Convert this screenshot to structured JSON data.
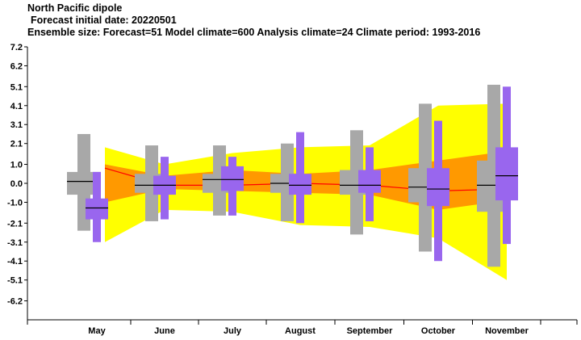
{
  "chart_data": {
    "type": "box",
    "title": "North Pacific dipole",
    "subtitle": " Forecast initial date: 20220501",
    "subtitle2": "Ensemble size: Forecast=51 Model climate=600 Analysis climate=24   Climate period: 1993-2016",
    "categories": [
      "May",
      "June",
      "July",
      "August",
      "September",
      "October",
      "November"
    ],
    "yticks": [
      "7.2",
      "6.2",
      "5.1",
      "4.1",
      "3.1",
      "2.1",
      "1.0",
      "0.0",
      "-1.0",
      "-2.1",
      "-3.1",
      "-4.1",
      "-5.1",
      "-6.2"
    ],
    "ylim": [
      -7.2,
      7.2
    ],
    "colors": {
      "outer_band": "#ffff00",
      "inner_band": "#ff9900",
      "climate_median": "#ff0000",
      "climate_box": "#a8a8a8",
      "forecast_box": "#9966ee",
      "median_line": "#000000"
    },
    "climate_bands": {
      "min": [
        -3.1,
        -1.4,
        -1.5,
        -2.2,
        -2.3,
        -2.9,
        -5.1
      ],
      "q25": [
        -1.0,
        -0.3,
        -0.4,
        -0.5,
        -0.6,
        -1.4,
        -0.9
      ],
      "median": [
        0.8,
        -0.1,
        -0.1,
        0.0,
        -0.1,
        -0.4,
        -0.3
      ],
      "q75": [
        1.0,
        0.4,
        0.7,
        0.5,
        0.7,
        1.2,
        1.7
      ],
      "max": [
        1.9,
        1.0,
        1.6,
        1.9,
        2.0,
        4.1,
        4.2
      ]
    },
    "climate_boxes": [
      {
        "min": -2.5,
        "q25": -0.6,
        "median": 0.1,
        "q75": 0.6,
        "max": 2.6
      },
      {
        "min": -2.0,
        "q25": -0.5,
        "median": -0.1,
        "q75": 0.5,
        "max": 2.0
      },
      {
        "min": -1.7,
        "q25": -0.5,
        "median": 0.2,
        "q75": 0.5,
        "max": 2.0
      },
      {
        "min": -2.0,
        "q25": -0.5,
        "median": 0.0,
        "q75": 0.5,
        "max": 2.1
      },
      {
        "min": -2.7,
        "q25": -0.6,
        "median": -0.1,
        "q75": 0.7,
        "max": 2.8
      },
      {
        "min": -3.6,
        "q25": -1.0,
        "median": -0.2,
        "q75": 0.8,
        "max": 4.2
      },
      {
        "min": -4.4,
        "q25": -1.5,
        "median": -0.1,
        "q75": 1.2,
        "max": 5.2
      }
    ],
    "forecast_boxes": [
      {
        "min": -3.1,
        "q25": -1.9,
        "median": -1.3,
        "q75": -0.8,
        "max": 0.6
      },
      {
        "min": -1.9,
        "q25": -0.6,
        "median": -0.1,
        "q75": 0.4,
        "max": 1.4
      },
      {
        "min": -1.7,
        "q25": -0.4,
        "median": 0.2,
        "q75": 0.9,
        "max": 1.4
      },
      {
        "min": -2.1,
        "q25": -0.6,
        "median": -0.1,
        "q75": 0.5,
        "max": 2.7
      },
      {
        "min": -2.0,
        "q25": -0.5,
        "median": -0.1,
        "q75": 0.7,
        "max": 1.9
      },
      {
        "min": -4.1,
        "q25": -1.2,
        "median": -0.3,
        "q75": 0.8,
        "max": 3.3
      },
      {
        "min": -3.2,
        "q25": -0.9,
        "median": 0.4,
        "q75": 1.9,
        "max": 5.1
      }
    ]
  }
}
